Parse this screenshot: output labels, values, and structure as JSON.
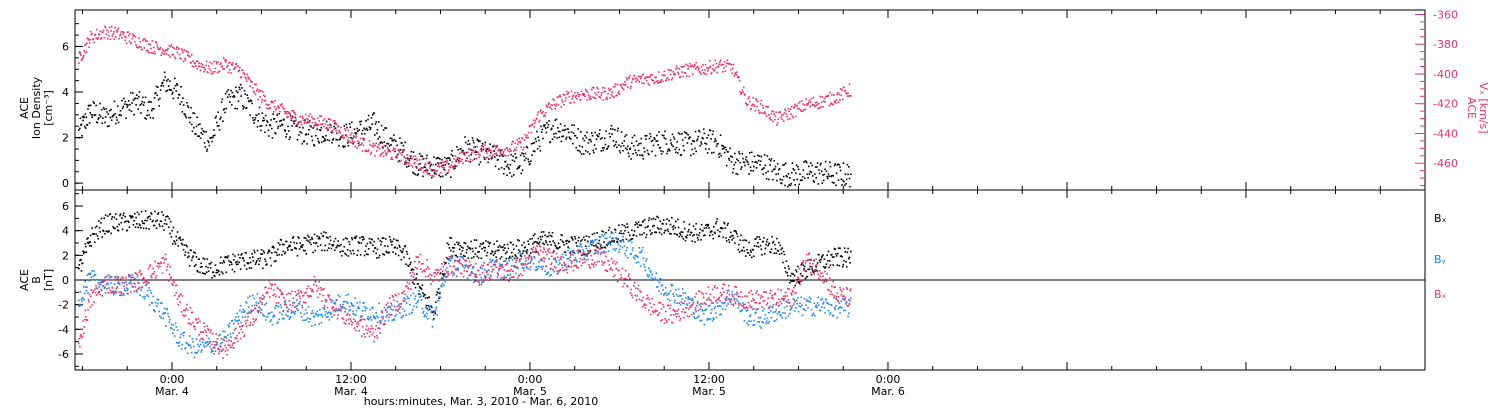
{
  "chart_data": [
    {
      "type": "scatter",
      "panel": "top",
      "x_axis": {
        "label": "hours:minutes, Mar. 3, 2010 - Mar. 6, 2010",
        "xlim_hours": [
          -6.5,
          84
        ],
        "ticks": [
          {
            "hour": 0,
            "time": "0:00",
            "date": "Mar. 4"
          },
          {
            "hour": 12,
            "time": "12:00",
            "date": "Mar. 4"
          },
          {
            "hour": 24,
            "time": "0:00",
            "date": "Mar. 5"
          },
          {
            "hour": 36,
            "time": "12:00",
            "date": "Mar. 5"
          },
          {
            "hour": 48,
            "time": "0:00",
            "date": "Mar. 6"
          }
        ]
      },
      "left_axis": {
        "title_lines": [
          "ACE",
          "Ion Density"
        ],
        "unit": "[cm⁻³]",
        "ylim": [
          -0.3,
          7.6
        ],
        "ticks": [
          0,
          2,
          4,
          6
        ],
        "color": "#000000"
      },
      "right_axis": {
        "title_lines": [
          "ACE",
          "Vₓ [km/s]"
        ],
        "ylim": [
          -478,
          -357
        ],
        "ticks": [
          -360,
          -380,
          -400,
          -420,
          -440,
          -460
        ],
        "color": "#e8336a"
      },
      "series": [
        {
          "color": "#000000",
          "axis": "left",
          "x": [
            -6.3,
            -5.5,
            -4.5,
            -3.5,
            -2.5,
            -1.5,
            -0.5,
            0.5,
            1.5,
            2.5,
            3.5,
            4.5,
            5.5,
            6.5,
            7.5,
            8.5,
            9.5,
            10.5,
            11.5,
            12.5,
            13.5,
            14.5,
            15.5,
            16.5,
            17.5,
            18.5,
            19.5,
            20.5,
            21.5,
            22.5,
            23.5,
            24.5,
            25.5,
            26.5,
            27.5,
            28.5,
            29.5,
            30.5,
            31.5,
            32.5,
            33.5,
            34.5,
            35.5,
            36.5,
            37.5,
            38.5,
            39.5,
            40.5,
            41.5,
            42.5,
            43.5,
            44.5,
            45.5
          ],
          "y": [
            2.2,
            3.2,
            2.9,
            3.3,
            3.6,
            3.2,
            4.5,
            3.9,
            2.5,
            1.8,
            3.5,
            3.9,
            3.1,
            2.5,
            2.6,
            2.3,
            2.2,
            2.4,
            2.1,
            2.3,
            2.6,
            1.8,
            1.4,
            0.8,
            0.8,
            0.7,
            1.6,
            1.4,
            1.2,
            0.8,
            0.9,
            1.9,
            2.5,
            2.3,
            1.8,
            1.9,
            2.2,
            1.6,
            1.6,
            1.8,
            1.9,
            1.7,
            1.9,
            1.8,
            1.0,
            0.9,
            0.9,
            0.5,
            0.4,
            0.5,
            0.5,
            0.4,
            0.4
          ]
        },
        {
          "color": "#e8336a",
          "axis": "right",
          "x": [
            -6.3,
            -5.5,
            -4.5,
            -3.5,
            -2.5,
            -1.5,
            -0.5,
            0.5,
            1.5,
            2.5,
            3.5,
            4.5,
            5.5,
            6.5,
            7.5,
            8.5,
            9.5,
            10.5,
            11.5,
            12.5,
            13.5,
            14.5,
            15.5,
            16.5,
            17.5,
            18.5,
            19.5,
            20.5,
            21.5,
            22.5,
            23.5,
            24.5,
            25.5,
            26.5,
            27.5,
            28.5,
            29.5,
            30.5,
            31.5,
            32.5,
            33.5,
            34.5,
            35.5,
            36.5,
            37.5,
            38.5,
            39.5,
            40.5,
            41.5,
            42.5,
            43.5,
            44.5,
            45.5
          ],
          "y": [
            -390,
            -375,
            -371,
            -373,
            -377,
            -381,
            -383,
            -386,
            -392,
            -396,
            -393,
            -397,
            -410,
            -420,
            -425,
            -430,
            -431,
            -433,
            -439,
            -446,
            -450,
            -453,
            -455,
            -460,
            -464,
            -462,
            -455,
            -452,
            -451,
            -450,
            -446,
            -428,
            -420,
            -415,
            -413,
            -413,
            -412,
            -405,
            -403,
            -402,
            -399,
            -397,
            -396,
            -394,
            -395,
            -418,
            -422,
            -430,
            -425,
            -420,
            -418,
            -415,
            -410
          ]
        }
      ]
    },
    {
      "type": "scatter",
      "panel": "bottom",
      "left_axis": {
        "title_lines": [
          "ACE",
          "B"
        ],
        "unit": "[nT]",
        "ylim": [
          -7.3,
          7.3
        ],
        "ticks": [
          -6,
          -4,
          -2,
          0,
          2,
          4,
          6
        ]
      },
      "zero_line": true,
      "series": [
        {
          "name": "Bₓ",
          "color": "#000000",
          "x": [
            -6.3,
            -5.5,
            -4.5,
            -3.5,
            -2.5,
            -1.5,
            -0.5,
            0.5,
            1.5,
            2.5,
            3.5,
            4.5,
            5.5,
            6.5,
            7.5,
            8.5,
            9.5,
            10.5,
            11.5,
            12.5,
            13.5,
            14.5,
            15.5,
            16.5,
            17.5,
            18.5,
            19.5,
            20.5,
            21.5,
            22.5,
            23.5,
            24.5,
            25.5,
            26.5,
            27.5,
            28.5,
            29.5,
            30.5,
            31.5,
            32.5,
            33.5,
            34.5,
            35.5,
            36.5,
            37.5,
            38.5,
            39.5,
            40.5,
            41.5,
            42.5,
            43.5,
            44.5,
            45.5
          ],
          "y": [
            0.8,
            3.5,
            4.6,
            4.7,
            4.8,
            4.9,
            4.8,
            2.8,
            1.5,
            0.9,
            1.3,
            1.6,
            1.7,
            1.8,
            2.9,
            2.8,
            3.1,
            3.2,
            2.7,
            2.9,
            2.6,
            2.8,
            2.3,
            -0.6,
            -2.6,
            2.8,
            2.7,
            2.5,
            2.4,
            2.5,
            2.6,
            3.2,
            3.2,
            2.9,
            2.8,
            3.3,
            3.6,
            3.9,
            4.2,
            4.5,
            4.4,
            4.0,
            3.8,
            4.3,
            3.7,
            2.5,
            2.9,
            2.9,
            0.2,
            0.9,
            1.5,
            1.9,
            1.8
          ]
        },
        {
          "name": "Bᵧ",
          "color": "#1e88e5",
          "x": [
            -6.3,
            -5.5,
            -4.5,
            -3.5,
            -2.5,
            -1.5,
            -0.5,
            0.5,
            1.5,
            2.5,
            3.5,
            4.5,
            5.5,
            6.5,
            7.5,
            8.5,
            9.5,
            10.5,
            11.5,
            12.5,
            13.5,
            14.5,
            15.5,
            16.5,
            17.5,
            18.5,
            19.5,
            20.5,
            21.5,
            22.5,
            23.5,
            24.5,
            25.5,
            26.5,
            27.5,
            28.5,
            29.5,
            30.5,
            31.5,
            32.5,
            33.5,
            34.5,
            35.5,
            36.5,
            37.5,
            38.5,
            39.5,
            40.5,
            41.5,
            42.5,
            43.5,
            44.5,
            45.5
          ],
          "y": [
            -1.5,
            0.1,
            -0.3,
            -0.5,
            -0.2,
            -1.3,
            -2.8,
            -4.8,
            -5.5,
            -5.3,
            -4.8,
            -2.8,
            -1.5,
            -2.9,
            -2.5,
            -2.2,
            -3.1,
            -2.4,
            -1.5,
            -2.4,
            -2.5,
            -2.9,
            -2.1,
            -1.6,
            -3.1,
            1.4,
            1.2,
            0.5,
            1.1,
            0.9,
            1.8,
            1.5,
            0.9,
            1.9,
            2.3,
            2.9,
            3.3,
            2.6,
            1.9,
            -0.3,
            -0.9,
            -1.6,
            -2.9,
            -2.3,
            -1.1,
            -2.8,
            -3.1,
            -2.5,
            -2.1,
            -2.1,
            -2.0,
            -2.2,
            -2.2
          ]
        },
        {
          "name": "Bₓ",
          "color": "#e8336a",
          "x": [
            -6.3,
            -5.5,
            -4.5,
            -3.5,
            -2.5,
            -1.5,
            -0.5,
            0.5,
            1.5,
            2.5,
            3.5,
            4.5,
            5.5,
            6.5,
            7.5,
            8.5,
            9.5,
            10.5,
            11.5,
            12.5,
            13.5,
            14.5,
            15.5,
            16.5,
            17.5,
            18.5,
            19.5,
            20.5,
            21.5,
            22.5,
            23.5,
            24.5,
            25.5,
            26.5,
            27.5,
            28.5,
            29.5,
            30.5,
            31.5,
            32.5,
            33.5,
            34.5,
            35.5,
            36.5,
            37.5,
            38.5,
            39.5,
            40.5,
            41.5,
            42.5,
            43.5,
            44.5,
            45.5
          ],
          "y": [
            -5.0,
            -1.5,
            -0.2,
            -0.4,
            -0.1,
            0.6,
            1.5,
            -1.8,
            -3.4,
            -4.7,
            -5.6,
            -4.1,
            -2.8,
            -0.6,
            -1.8,
            -1.5,
            -0.4,
            -1.7,
            -2.8,
            -3.6,
            -4.4,
            -2.2,
            -1.3,
            1.8,
            0.2,
            1.2,
            1.1,
            0.4,
            1.0,
            0.6,
            1.2,
            2.4,
            1.6,
            1.4,
            1.8,
            1.9,
            1.0,
            -0.1,
            -1.5,
            -2.5,
            -2.8,
            -2.2,
            -1.5,
            -0.9,
            -1.2,
            -1.5,
            -1.6,
            -1.5,
            -1.3,
            1.7,
            0.8,
            -1.2,
            -1.4
          ]
        }
      ]
    }
  ]
}
